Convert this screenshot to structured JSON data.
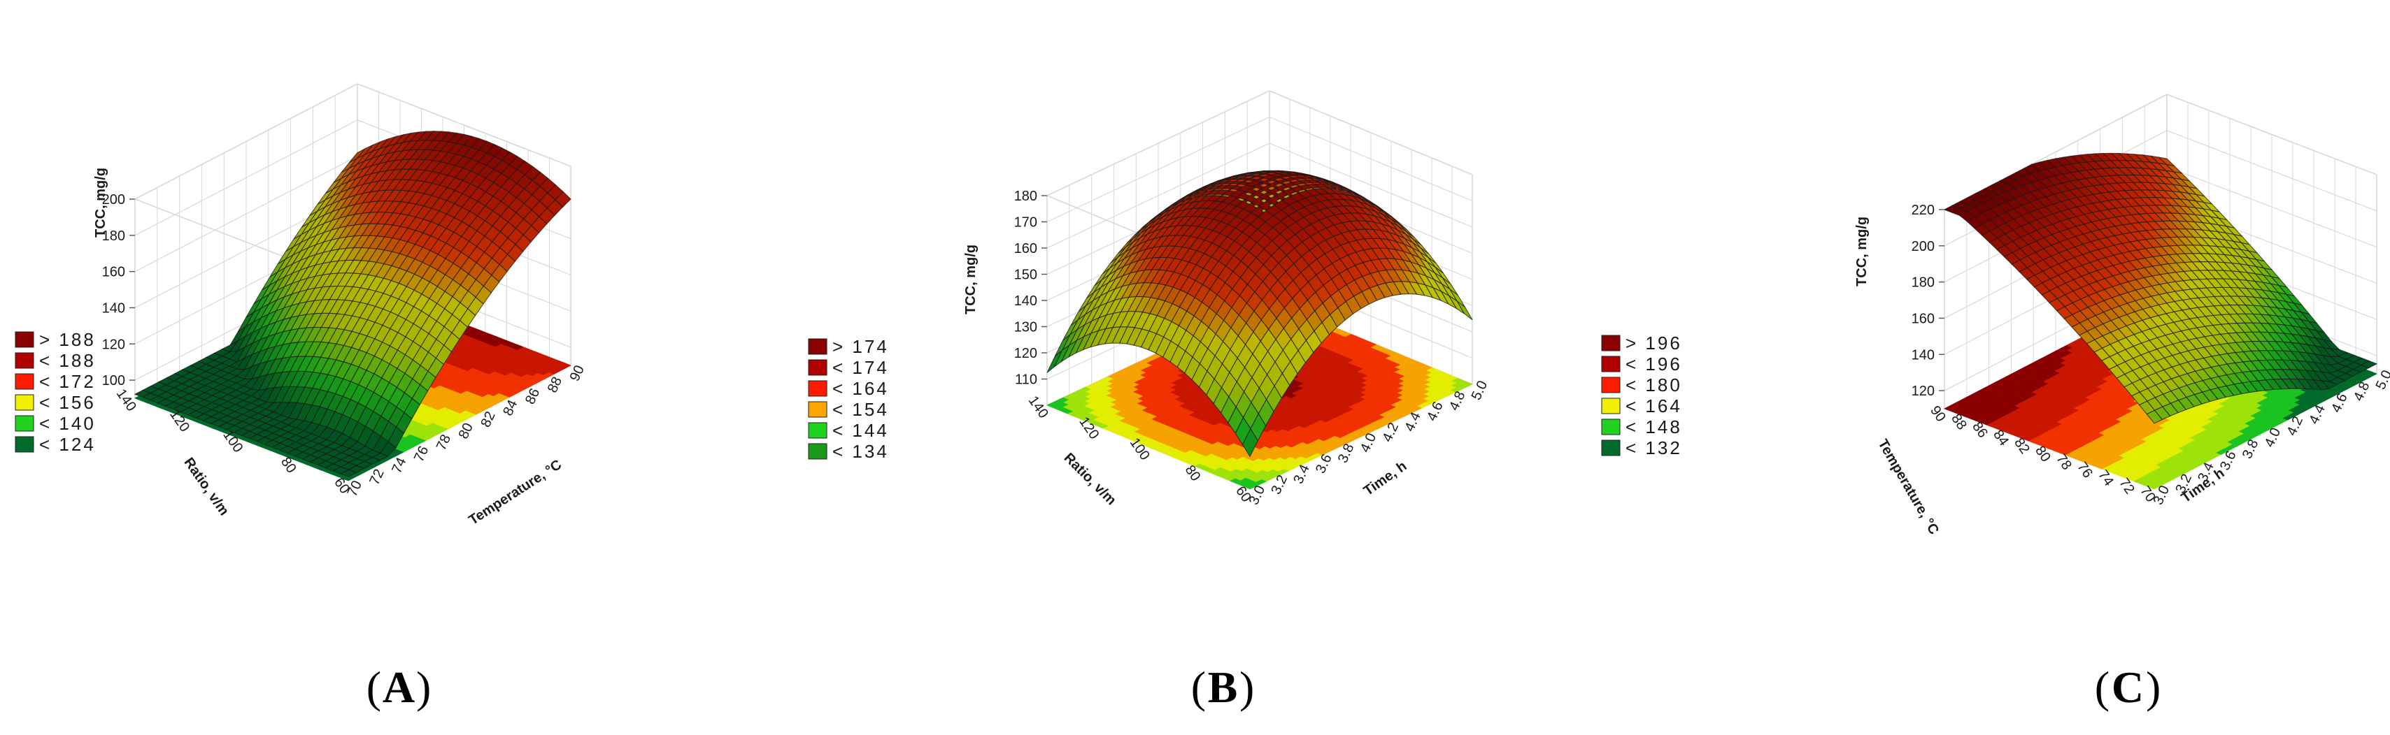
{
  "colors": {
    "c0": "#006a2b",
    "c1": "#1fd21f",
    "c2": "#cfe800",
    "c3": "#f0f000",
    "c4": "#ff3a00",
    "c5": "#d21a00",
    "c6": "#8b0000",
    "wire": "#1a1a1a",
    "grid": "#d9d9d9"
  },
  "chart_data": [
    {
      "type": "surface3d",
      "caption_open": "(",
      "caption": "A",
      "caption_close": ")",
      "zlabel": "TCC, mg/g",
      "xlabel": "Temperature, °C",
      "ylabel": "Ratio, v/m",
      "x_ticks": [
        "70",
        "72",
        "74",
        "76",
        "78",
        "80",
        "82",
        "84",
        "86",
        "88",
        "90"
      ],
      "y_ticks": [
        "140",
        "120",
        "100",
        "80",
        "60"
      ],
      "z_ticks": [
        "100",
        "120",
        "140",
        "160",
        "180",
        "200"
      ],
      "zlim": [
        90,
        200
      ],
      "legend": [
        {
          "label": "> 188",
          "color": "#8b0000"
        },
        {
          "label": "< 188",
          "color": "#b00000"
        },
        {
          "label": "< 172",
          "color": "#ff1a00"
        },
        {
          "label": "< 156",
          "color": "#f0f000"
        },
        {
          "label": "< 140",
          "color": "#1fd21f"
        },
        {
          "label": "< 124",
          "color": "#006a2b"
        }
      ]
    },
    {
      "type": "surface3d",
      "caption_open": "(",
      "caption": "B",
      "caption_close": ")",
      "zlabel": "TCC, mg/g",
      "xlabel": "Time, h",
      "ylabel": "Ratio, v/m",
      "x_ticks": [
        "3.0",
        "3.2",
        "3.4",
        "3.6",
        "3.8",
        "4.0",
        "4.2",
        "4.4",
        "4.6",
        "4.8",
        "5.0"
      ],
      "y_ticks": [
        "140",
        "120",
        "100",
        "80",
        "60"
      ],
      "z_ticks": [
        "110",
        "120",
        "130",
        "140",
        "150",
        "160",
        "170",
        "180"
      ],
      "zlim": [
        100,
        180
      ],
      "legend": [
        {
          "label": "> 174",
          "color": "#8b0000"
        },
        {
          "label": "< 174",
          "color": "#b00000"
        },
        {
          "label": "< 164",
          "color": "#ff1a00"
        },
        {
          "label": "< 154",
          "color": "#ffa500"
        },
        {
          "label": "< 144",
          "color": "#1fd21f"
        },
        {
          "label": "< 134",
          "color": "#1a9a1a"
        }
      ]
    },
    {
      "type": "surface3d",
      "caption_open": "(",
      "caption": "C",
      "caption_close": ")",
      "zlabel": "TCC, mg/g",
      "xlabel": "Time, h",
      "ylabel": "Temperature, °C",
      "x_ticks": [
        "3.0",
        "3.2",
        "3.4",
        "3.6",
        "3.8",
        "4.0",
        "4.2",
        "4.4",
        "4.6",
        "4.8",
        "5.0"
      ],
      "y_ticks": [
        "90",
        "88",
        "86",
        "84",
        "82",
        "80",
        "78",
        "76",
        "74",
        "72",
        "70"
      ],
      "z_ticks": [
        "120",
        "140",
        "160",
        "180",
        "200",
        "220"
      ],
      "zlim": [
        110,
        220
      ],
      "legend": [
        {
          "label": "> 196",
          "color": "#8b0000"
        },
        {
          "label": "< 196",
          "color": "#b00000"
        },
        {
          "label": "< 180",
          "color": "#ff1a00"
        },
        {
          "label": "< 164",
          "color": "#f0f000"
        },
        {
          "label": "< 148",
          "color": "#1fd21f"
        },
        {
          "label": "< 132",
          "color": "#006a2b"
        }
      ]
    }
  ]
}
